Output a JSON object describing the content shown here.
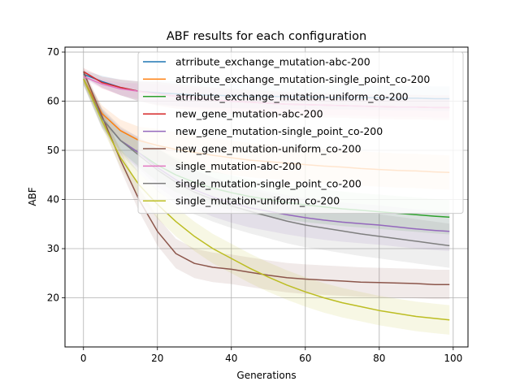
{
  "chart_data": {
    "type": "line",
    "title": "ABF results for each configuration",
    "xlabel": "Generations",
    "ylabel": "ABF",
    "xlim": [
      -5,
      104
    ],
    "ylim": [
      10,
      71
    ],
    "xticks": [
      0,
      20,
      40,
      60,
      80,
      100
    ],
    "yticks": [
      20,
      30,
      40,
      50,
      60,
      70
    ],
    "grid": true,
    "legend_position": "upper right",
    "x": [
      0,
      5,
      10,
      15,
      20,
      25,
      30,
      35,
      40,
      45,
      50,
      55,
      60,
      65,
      70,
      75,
      80,
      85,
      90,
      95,
      99
    ],
    "series": [
      {
        "name": "atrribute_exchange_mutation-abc-200",
        "color": "#1f77b4",
        "values": [
          65.5,
          64.0,
          62.8,
          62.0,
          61.7,
          61.5,
          61.3,
          61.2,
          61.1,
          61.0,
          61.0,
          60.9,
          60.9,
          60.8,
          60.8,
          60.7,
          60.7,
          60.6,
          60.6,
          60.5,
          60.5
        ],
        "band": 2.5
      },
      {
        "name": "atrribute_exchange_mutation-single_point_co-200",
        "color": "#ff7f0e",
        "values": [
          64.5,
          57.5,
          54.0,
          52.0,
          51.0,
          50.2,
          49.6,
          49.0,
          48.5,
          48.0,
          47.7,
          47.4,
          47.1,
          46.8,
          46.6,
          46.3,
          46.1,
          45.9,
          45.8,
          45.6,
          45.5
        ],
        "band": 3.5
      },
      {
        "name": "atrribute_exchange_mutation-uniform_co-200",
        "color": "#2ca02c",
        "values": [
          64.5,
          56.5,
          52.0,
          49.5,
          47.0,
          45.0,
          43.5,
          42.3,
          41.4,
          40.6,
          40.0,
          39.4,
          38.9,
          38.5,
          38.1,
          37.8,
          37.5,
          37.2,
          36.9,
          36.6,
          36.4
        ],
        "band": 3.5
      },
      {
        "name": "new_gene_mutation-abc-200",
        "color": "#d62728",
        "values": [
          66.0,
          63.8,
          62.8,
          62.0,
          61.5,
          61.0,
          60.6,
          60.3,
          60.0,
          59.8,
          59.6,
          59.4,
          59.3,
          59.2,
          59.1,
          59.0,
          58.9,
          58.8,
          58.8,
          58.7,
          58.7
        ],
        "band": 2.5
      },
      {
        "name": "new_gene_mutation-single_point_co-200",
        "color": "#9467bd",
        "values": [
          64.5,
          56.5,
          52.0,
          49.5,
          46.5,
          44.0,
          42.0,
          40.5,
          39.3,
          38.3,
          37.6,
          36.9,
          36.3,
          35.8,
          35.4,
          35.1,
          34.8,
          34.4,
          34.0,
          33.7,
          33.5
        ],
        "band": 4.0
      },
      {
        "name": "new_gene_mutation-uniform_co-200",
        "color": "#8c564b",
        "values": [
          66.0,
          57.0,
          48.0,
          40.0,
          33.5,
          29.0,
          27.0,
          26.2,
          25.8,
          25.2,
          24.6,
          24.1,
          23.8,
          23.6,
          23.4,
          23.2,
          23.1,
          23.0,
          22.9,
          22.7,
          22.7
        ],
        "band": 3.0
      },
      {
        "name": "single_mutation-abc-200",
        "color": "#e377c2",
        "values": [
          65.0,
          63.5,
          62.5,
          62.0,
          61.5,
          61.0,
          60.6,
          60.3,
          60.0,
          59.8,
          59.6,
          59.4,
          59.3,
          59.2,
          59.1,
          59.0,
          58.9,
          58.8,
          58.8,
          58.7,
          58.7
        ],
        "band": 2.0
      },
      {
        "name": "single_mutation-single_point_co-200",
        "color": "#7f7f7f",
        "values": [
          64.5,
          56.5,
          52.0,
          49.0,
          46.0,
          43.5,
          41.5,
          40.0,
          38.7,
          37.6,
          36.6,
          35.6,
          34.8,
          34.2,
          33.6,
          33.0,
          32.5,
          32.0,
          31.5,
          31.0,
          30.6
        ],
        "band": 4.5
      },
      {
        "name": "single_mutation-uniform_co-200",
        "color": "#bcbd22",
        "values": [
          64.5,
          56.0,
          48.5,
          43.0,
          39.0,
          35.5,
          32.5,
          30.0,
          28.0,
          26.0,
          24.2,
          22.6,
          21.2,
          20.0,
          19.0,
          18.2,
          17.4,
          16.8,
          16.2,
          15.8,
          15.5
        ],
        "band": 3.0
      }
    ]
  }
}
